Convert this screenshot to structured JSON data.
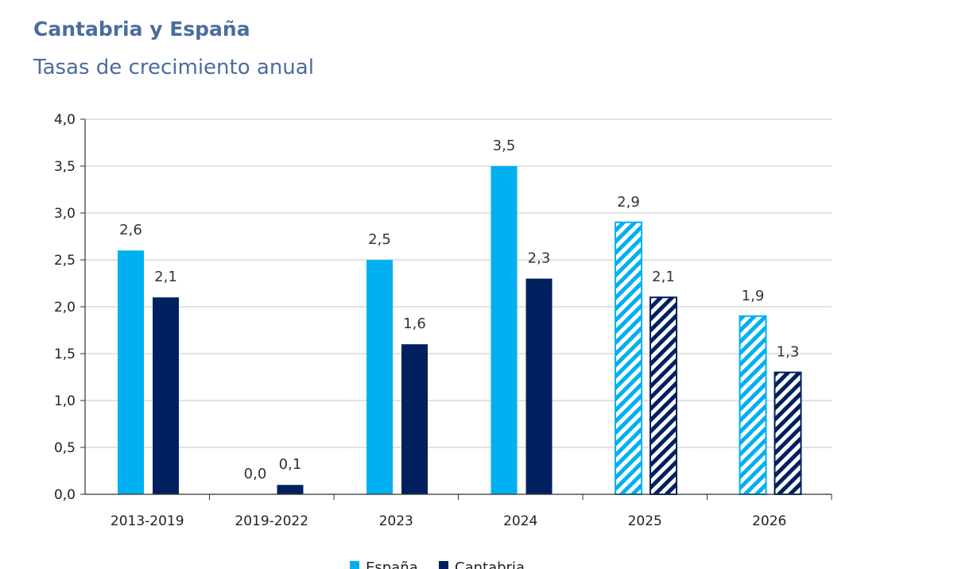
{
  "chart_data": {
    "type": "bar",
    "title": "Cantabria y España",
    "subtitle": "Tasas de crecimiento anual",
    "categories": [
      "2013-2019",
      "2019-2022",
      "2023",
      "2024",
      "2025",
      "2026"
    ],
    "series": [
      {
        "name": "España",
        "color": "#00b0f0",
        "values": [
          2.6,
          0.0,
          2.5,
          3.5,
          2.9,
          1.9
        ],
        "labels": [
          "2,6",
          "0,0",
          "2,5",
          "3,5",
          "2,9",
          "1,9"
        ]
      },
      {
        "name": "Cantabria",
        "color": "#002060",
        "values": [
          2.1,
          0.1,
          1.6,
          2.3,
          2.1,
          1.3
        ],
        "labels": [
          "2,1",
          "0,1",
          "1,6",
          "2,3",
          "2,1",
          "1,3"
        ]
      }
    ],
    "hatched_categories": [
      "2025",
      "2026"
    ],
    "ylim": [
      0,
      4
    ],
    "yticks": [
      "0,0",
      "0,5",
      "1,0",
      "1,5",
      "2,0",
      "2,5",
      "3,0",
      "3,5",
      "4,0"
    ],
    "grid": true,
    "legend_position": "bottom"
  }
}
